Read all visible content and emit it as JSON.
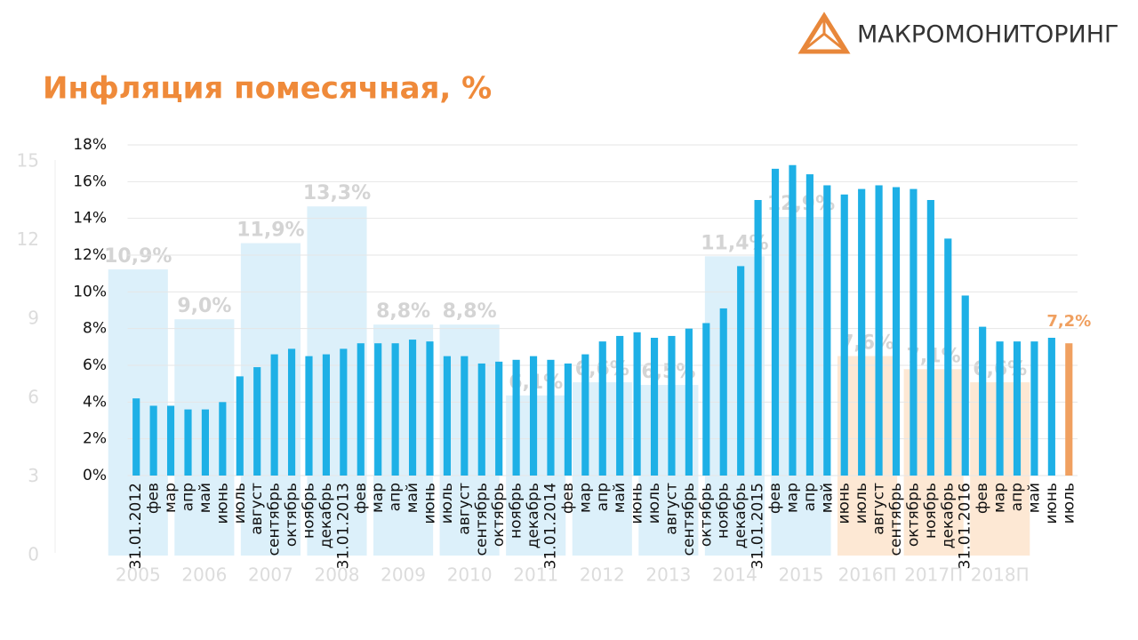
{
  "header": {
    "logo": "МАКРОМОНИТОРИНГ",
    "title": "Инфляция помесячная, %"
  },
  "chart_data": [
    {
      "type": "bar",
      "categories": [
        "31.01.2012",
        "фев",
        "мар",
        "апр",
        "май",
        "июнь",
        "июль",
        "август",
        "сентябрь",
        "октябрь",
        "ноябрь",
        "декабрь",
        "31.01.2013",
        "фев",
        "мар",
        "апр",
        "май",
        "июнь",
        "июль",
        "август",
        "сентябрь",
        "октябрь",
        "ноябрь",
        "декабрь",
        "31.01.2014",
        "фев",
        "мар",
        "апр",
        "май",
        "июнь",
        "июль",
        "август",
        "сентябрь",
        "октябрь",
        "ноябрь",
        "декабрь",
        "31.01.2015",
        "фев",
        "мар",
        "апр",
        "май",
        "июнь",
        "июль",
        "август",
        "сентябрь",
        "октябрь",
        "ноябрь",
        "декабрь",
        "31.01.2016",
        "фев",
        "мар",
        "апр",
        "май",
        "июнь",
        "июль"
      ],
      "values": [
        4.2,
        3.8,
        3.8,
        3.6,
        3.6,
        4.0,
        5.4,
        5.9,
        6.6,
        6.9,
        6.5,
        6.6,
        6.9,
        7.2,
        7.2,
        7.2,
        7.4,
        7.3,
        6.5,
        6.5,
        6.1,
        6.2,
        6.3,
        6.5,
        6.3,
        6.1,
        6.6,
        7.3,
        7.6,
        7.8,
        7.5,
        7.6,
        8.0,
        8.3,
        9.1,
        11.4,
        15.0,
        16.7,
        16.9,
        16.4,
        15.8,
        15.3,
        15.6,
        15.8,
        15.7,
        15.6,
        15.0,
        12.9,
        9.8,
        8.1,
        7.3,
        7.3,
        7.3,
        7.5,
        7.2
      ],
      "value_labels": [
        null,
        null,
        null,
        null,
        null,
        null,
        null,
        null,
        null,
        null,
        null,
        null,
        null,
        null,
        null,
        null,
        null,
        null,
        null,
        null,
        null,
        null,
        null,
        null,
        null,
        null,
        null,
        null,
        null,
        null,
        null,
        null,
        null,
        null,
        null,
        null,
        null,
        null,
        null,
        null,
        null,
        null,
        null,
        null,
        null,
        null,
        null,
        null,
        null,
        null,
        null,
        null,
        null,
        null,
        "7,2%"
      ],
      "colors": [
        "#1eb0e6",
        "#1eb0e6",
        "#1eb0e6",
        "#1eb0e6",
        "#1eb0e6",
        "#1eb0e6",
        "#1eb0e6",
        "#1eb0e6",
        "#1eb0e6",
        "#1eb0e6",
        "#1eb0e6",
        "#1eb0e6",
        "#1eb0e6",
        "#1eb0e6",
        "#1eb0e6",
        "#1eb0e6",
        "#1eb0e6",
        "#1eb0e6",
        "#1eb0e6",
        "#1eb0e6",
        "#1eb0e6",
        "#1eb0e6",
        "#1eb0e6",
        "#1eb0e6",
        "#1eb0e6",
        "#1eb0e6",
        "#1eb0e6",
        "#1eb0e6",
        "#1eb0e6",
        "#1eb0e6",
        "#1eb0e6",
        "#1eb0e6",
        "#1eb0e6",
        "#1eb0e6",
        "#1eb0e6",
        "#1eb0e6",
        "#1eb0e6",
        "#1eb0e6",
        "#1eb0e6",
        "#1eb0e6",
        "#1eb0e6",
        "#1eb0e6",
        "#1eb0e6",
        "#1eb0e6",
        "#1eb0e6",
        "#1eb0e6",
        "#1eb0e6",
        "#1eb0e6",
        "#1eb0e6",
        "#1eb0e6",
        "#1eb0e6",
        "#1eb0e6",
        "#1eb0e6",
        "#1eb0e6",
        "#f0a060"
      ],
      "ylim": [
        0,
        18
      ],
      "yticks": [
        {
          "value": 0,
          "label": "0%"
        },
        {
          "value": 2,
          "label": "2%"
        },
        {
          "value": 4,
          "label": "4%"
        },
        {
          "value": 6,
          "label": "6%"
        },
        {
          "value": 8,
          "label": "8%"
        },
        {
          "value": 10,
          "label": "10%"
        },
        {
          "value": 12,
          "label": "12%"
        },
        {
          "value": 14,
          "label": "14%"
        },
        {
          "value": 16,
          "label": "16%"
        },
        {
          "value": 18,
          "label": "18%"
        }
      ],
      "grid": true
    },
    {
      "type": "bar",
      "categories": [
        "2005",
        "2006",
        "2007",
        "2008",
        "2009",
        "2010",
        "2011",
        "2012",
        "2013",
        "2014",
        "2015",
        "2016П",
        "2017П",
        "2018П"
      ],
      "values": [
        10.9,
        9.0,
        11.9,
        13.3,
        8.8,
        8.8,
        6.1,
        6.6,
        6.5,
        11.4,
        12.9,
        7.6,
        7.1,
        6.6
      ],
      "value_labels": [
        "10,9%",
        "9,0%",
        "11,9%",
        "13,3%",
        "8,8%",
        "8,8%",
        "6,1%",
        "6,6%",
        "6,5%",
        "11,4%",
        "12,9%",
        "7,6%",
        "7,1%",
        "6,6%"
      ],
      "colors": [
        "#dcf0fa",
        "#dcf0fa",
        "#dcf0fa",
        "#dcf0fa",
        "#dcf0fa",
        "#dcf0fa",
        "#dcf0fa",
        "#dcf0fa",
        "#dcf0fa",
        "#dcf0fa",
        "#dcf0fa",
        "#fde8d4",
        "#fde8d4",
        "#fde8d4"
      ],
      "ylim": [
        0,
        15
      ],
      "yticks": [
        0,
        3,
        6,
        9,
        12,
        15
      ]
    }
  ]
}
